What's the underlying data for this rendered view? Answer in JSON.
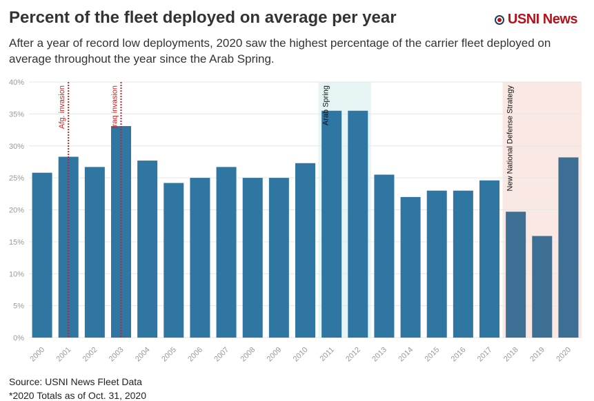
{
  "header": {
    "title": "Percent of the fleet deployed on average per year",
    "subtitle": "After a year of record low deployments, 2020 saw the highest percentage of the carrier fleet deployed on average throughout the year since the Arab Spring.",
    "logo_text": "USNI News"
  },
  "footer": {
    "source": "Source: USNI News Fleet Data",
    "note": "*2020 Totals as of Oct. 31, 2020"
  },
  "colors": {
    "bar": "#2f76a3",
    "bar_recent": "#3d6f95",
    "shade_arab": "#e6f4f4",
    "shade_nds": "#f9e8e3",
    "event_line": "#cc1f1f",
    "grid": "#e6e6e6",
    "tick_label": "#999999"
  },
  "chart_data": {
    "type": "bar",
    "categories": [
      "2000",
      "2001",
      "2002",
      "2003",
      "2004",
      "2005",
      "2006",
      "2007",
      "2008",
      "2009",
      "2010",
      "2011",
      "2012",
      "2013",
      "2014",
      "2015",
      "2016",
      "2017",
      "2018",
      "2019",
      "2020"
    ],
    "values": [
      25.8,
      28.3,
      26.7,
      33.1,
      27.7,
      24.2,
      25.0,
      26.7,
      25.0,
      25.0,
      27.3,
      35.5,
      35.5,
      25.5,
      22.0,
      23.0,
      23.0,
      24.6,
      19.7,
      15.9,
      28.2
    ],
    "ylim": [
      0,
      40
    ],
    "yticks": [
      0,
      5,
      10,
      15,
      20,
      25,
      30,
      35,
      40
    ],
    "ytick_labels": [
      "0%",
      "5%",
      "10%",
      "15%",
      "20%",
      "25%",
      "30%",
      "35%",
      "40%"
    ],
    "grid": true,
    "annotations": [
      {
        "type": "line",
        "x": "2001",
        "label": "Afg. invasion"
      },
      {
        "type": "line",
        "x": "2003",
        "label": "Iraq invasion"
      },
      {
        "type": "band",
        "from": "2011",
        "to": "2012",
        "label": "Arab Spring"
      },
      {
        "type": "band",
        "from": "2018",
        "to": "2020",
        "label": "New National Defense Strategy"
      }
    ]
  }
}
